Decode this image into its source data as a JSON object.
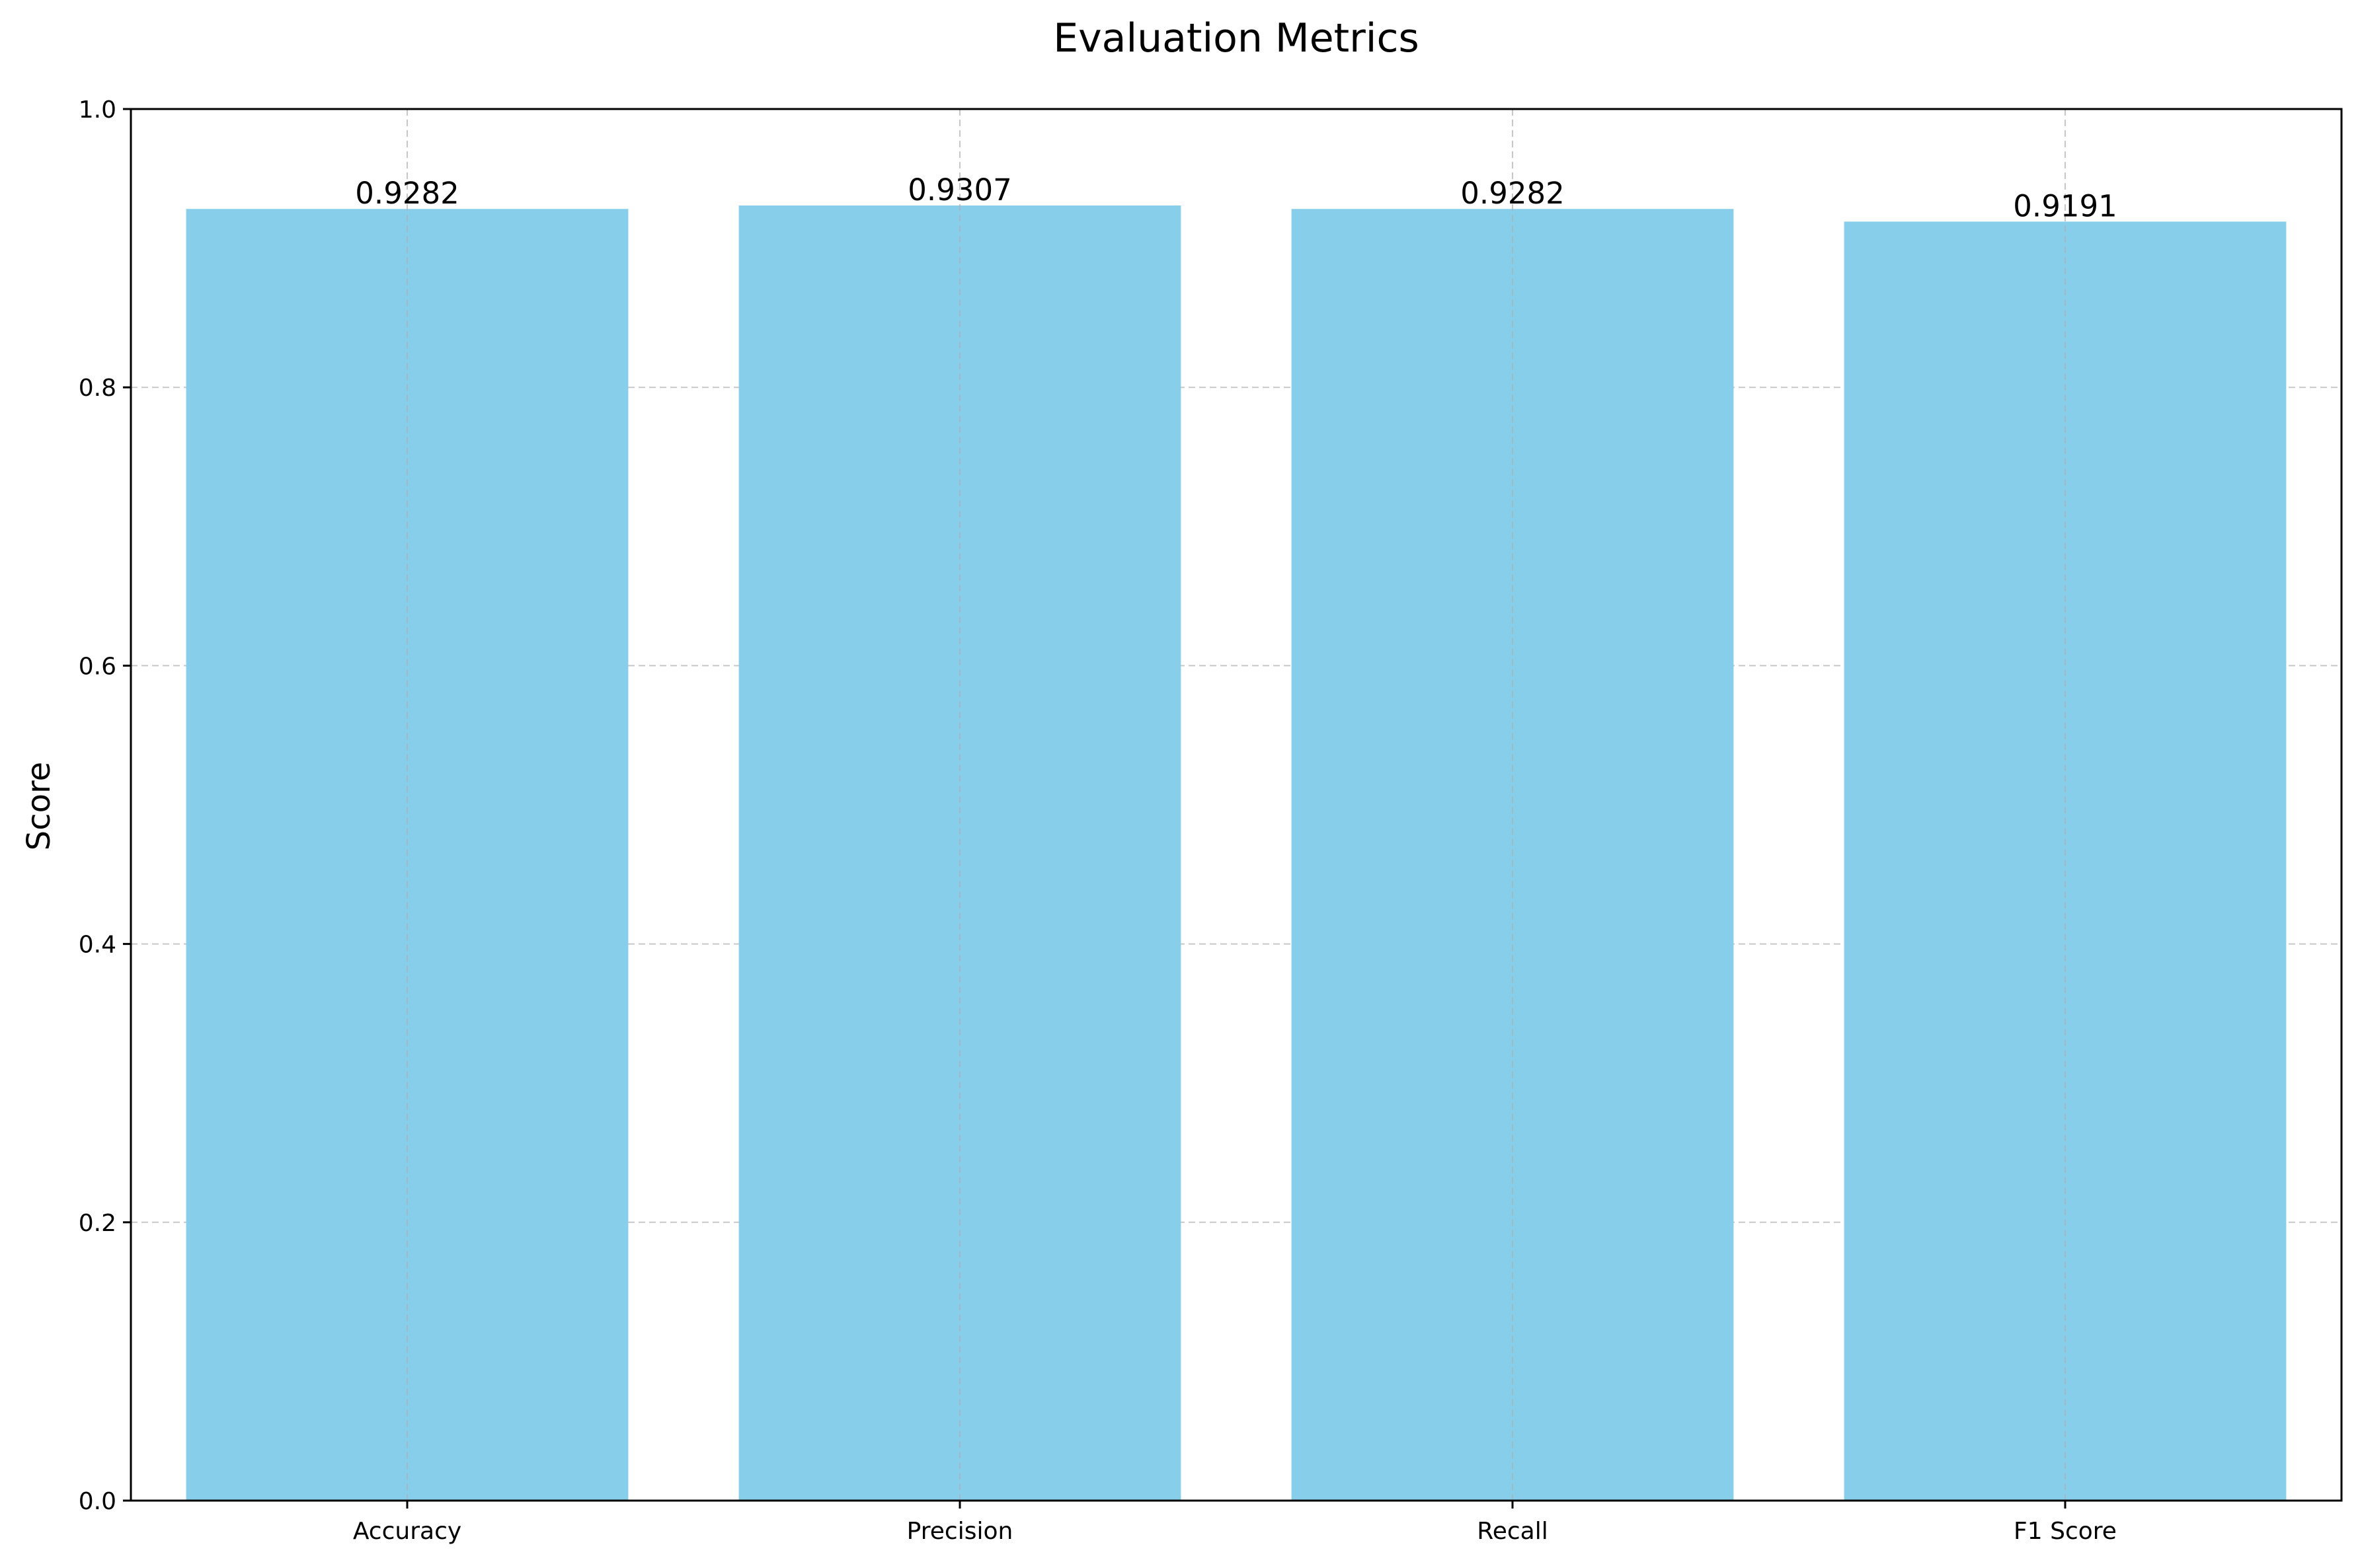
{
  "chart_data": {
    "type": "bar",
    "title": "Evaluation Metrics",
    "xlabel": "",
    "ylabel": "Score",
    "categories": [
      "Accuracy",
      "Precision",
      "Recall",
      "F1 Score"
    ],
    "values": [
      0.9282,
      0.9307,
      0.9282,
      0.9191
    ],
    "value_labels": [
      "0.9282",
      "0.9307",
      "0.9282",
      "0.9191"
    ],
    "ylim": [
      0,
      1.0
    ],
    "yticks": [
      0.0,
      0.2,
      0.4,
      0.6,
      0.8,
      1.0
    ],
    "ytick_labels": [
      "0.0",
      "0.2",
      "0.4",
      "0.6",
      "0.8",
      "1.0"
    ],
    "grid": true,
    "bar_color": "#87CEEB"
  }
}
